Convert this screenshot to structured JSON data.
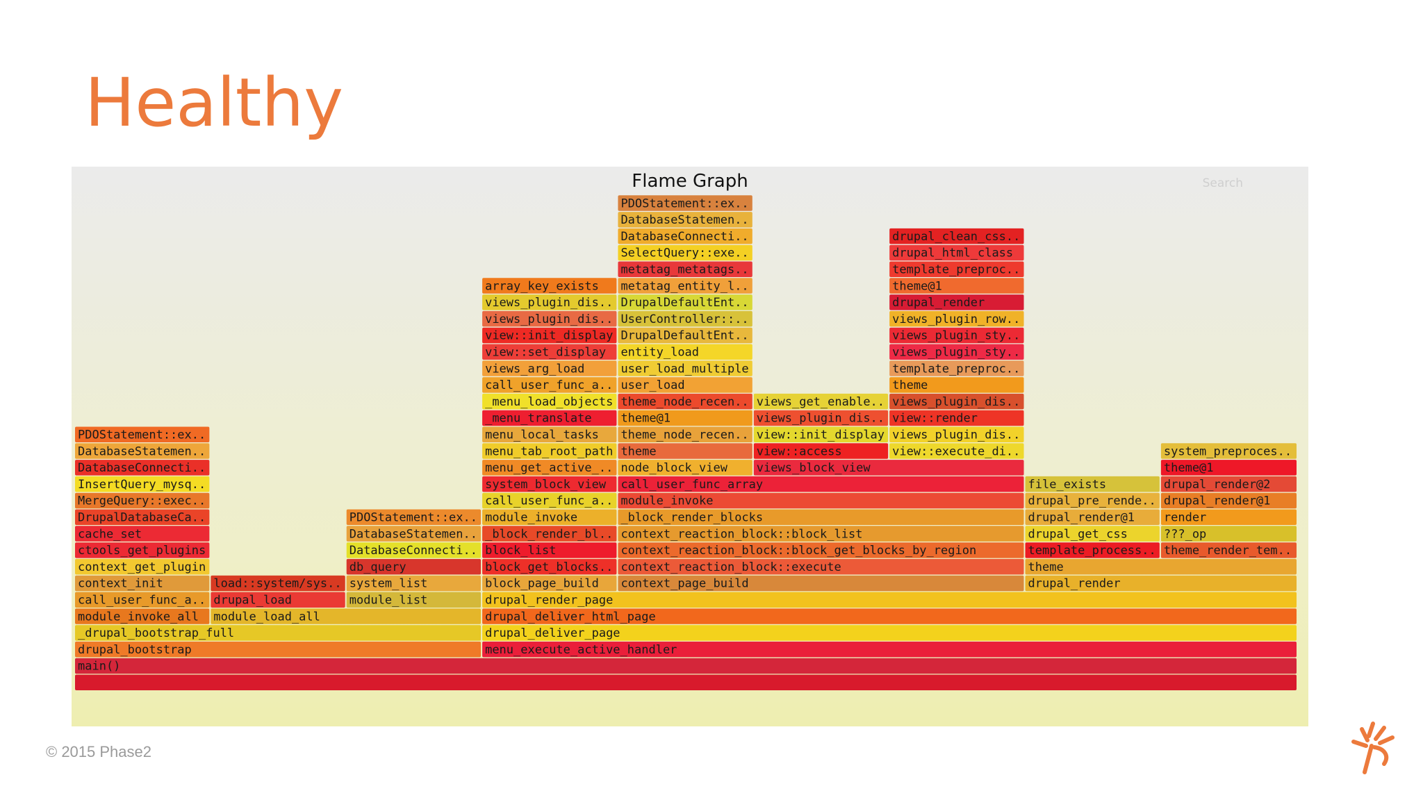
{
  "slide": {
    "title": "Healthy",
    "copyright": "© 2015 Phase2",
    "logo_icon": "phase2-logo-icon",
    "accent_color": "#ec7a3c"
  },
  "chart_data": {
    "type": "flame",
    "title": "Flame Graph",
    "search_label": "Search",
    "x_range": [
      0,
      1000
    ],
    "depth_range": [
      0,
      29
    ],
    "frames": [
      {
        "label": "",
        "start": 0,
        "width": 1000,
        "depth": 0,
        "color": "#d81a2c"
      },
      {
        "label": "main()",
        "start": 0,
        "width": 1000,
        "depth": 1,
        "color": "#d4263a"
      },
      {
        "label": "drupal_bootstrap",
        "start": 0,
        "width": 333,
        "depth": 2,
        "color": "#ef7a28"
      },
      {
        "label": "menu_execute_active_handler",
        "start": 333,
        "width": 667,
        "depth": 2,
        "color": "#ea1f3a"
      },
      {
        "label": "_drupal_bootstrap_full",
        "start": 0,
        "width": 333,
        "depth": 3,
        "color": "#e6c826"
      },
      {
        "label": "drupal_deliver_page",
        "start": 333,
        "width": 667,
        "depth": 3,
        "color": "#f3d21c"
      },
      {
        "label": "module_invoke_all",
        "start": 0,
        "width": 111,
        "depth": 4,
        "color": "#e8781e"
      },
      {
        "label": "module_load_all",
        "start": 111,
        "width": 222,
        "depth": 4,
        "color": "#e4b62a"
      },
      {
        "label": "drupal_deliver_html_page",
        "start": 333,
        "width": 667,
        "depth": 4,
        "color": "#f2681c"
      },
      {
        "label": "call_user_func_a..",
        "start": 0,
        "width": 111,
        "depth": 5,
        "color": "#e89a2a"
      },
      {
        "label": "drupal_load",
        "start": 111,
        "width": 111,
        "depth": 5,
        "color": "#ea3a34"
      },
      {
        "label": "module_list",
        "start": 222,
        "width": 111,
        "depth": 5,
        "color": "#d4b83a"
      },
      {
        "label": "drupal_render_page",
        "start": 333,
        "width": 667,
        "depth": 5,
        "color": "#f2c21e"
      },
      {
        "label": "context_init",
        "start": 0,
        "width": 111,
        "depth": 6,
        "color": "#e09a3a"
      },
      {
        "label": "load::system/sys..",
        "start": 111,
        "width": 111,
        "depth": 6,
        "color": "#d83a22"
      },
      {
        "label": "system_list",
        "start": 222,
        "width": 111,
        "depth": 6,
        "color": "#e8a83c"
      },
      {
        "label": "block_page_build",
        "start": 333,
        "width": 111,
        "depth": 6,
        "color": "#e8a63a"
      },
      {
        "label": "context_page_build",
        "start": 444,
        "width": 333,
        "depth": 6,
        "color": "#d8883a"
      },
      {
        "label": "drupal_render",
        "start": 777,
        "width": 223,
        "depth": 6,
        "color": "#e8b12a"
      },
      {
        "label": "context_get_plugin",
        "start": 0,
        "width": 111,
        "depth": 7,
        "color": "#f2c830"
      },
      {
        "label": "db_query",
        "start": 222,
        "width": 111,
        "depth": 7,
        "color": "#d8362c"
      },
      {
        "label": "block_get_blocks..",
        "start": 333,
        "width": 111,
        "depth": 7,
        "color": "#ee3028"
      },
      {
        "label": "context_reaction_block::execute",
        "start": 444,
        "width": 333,
        "depth": 7,
        "color": "#ec5a38"
      },
      {
        "label": "theme",
        "start": 777,
        "width": 223,
        "depth": 7,
        "color": "#e8a630"
      },
      {
        "label": "ctools_get_plugins",
        "start": 0,
        "width": 111,
        "depth": 8,
        "color": "#ec2a34"
      },
      {
        "label": "DatabaseConnecti..",
        "start": 222,
        "width": 111,
        "depth": 8,
        "color": "#e4e02a"
      },
      {
        "label": "block_list",
        "start": 333,
        "width": 111,
        "depth": 8,
        "color": "#ee1c2c"
      },
      {
        "label": "context_reaction_block::block_get_blocks_by_region",
        "start": 444,
        "width": 333,
        "depth": 8,
        "color": "#ec6a2c"
      },
      {
        "label": "template_process..",
        "start": 777,
        "width": 111,
        "depth": 8,
        "color": "#ec1c24"
      },
      {
        "label": "theme_render_tem..",
        "start": 888,
        "width": 112,
        "depth": 8,
        "color": "#e85a2c"
      },
      {
        "label": "cache_set",
        "start": 0,
        "width": 111,
        "depth": 9,
        "color": "#ec2a34"
      },
      {
        "label": "DatabaseStatemen..",
        "start": 222,
        "width": 111,
        "depth": 9,
        "color": "#e8a23c"
      },
      {
        "label": "_block_render_bl..",
        "start": 333,
        "width": 111,
        "depth": 9,
        "color": "#e84a28"
      },
      {
        "label": "context_reaction_block::block_list",
        "start": 444,
        "width": 333,
        "depth": 9,
        "color": "#e69a2e"
      },
      {
        "label": "drupal_get_css",
        "start": 777,
        "width": 111,
        "depth": 9,
        "color": "#ecd42c"
      },
      {
        "label": "???_op",
        "start": 888,
        "width": 112,
        "depth": 9,
        "color": "#d8c02a"
      },
      {
        "label": "DrupalDatabaseCa..",
        "start": 0,
        "width": 111,
        "depth": 10,
        "color": "#ea4428"
      },
      {
        "label": "PDOStatement::ex..",
        "start": 222,
        "width": 111,
        "depth": 10,
        "color": "#ec8a2c"
      },
      {
        "label": "module_invoke",
        "start": 333,
        "width": 111,
        "depth": 10,
        "color": "#ecb02a"
      },
      {
        "label": "_block_render_blocks",
        "start": 444,
        "width": 333,
        "depth": 10,
        "color": "#e89a2a"
      },
      {
        "label": "drupal_render@1",
        "start": 777,
        "width": 111,
        "depth": 10,
        "color": "#e8ac3a"
      },
      {
        "label": "render",
        "start": 888,
        "width": 112,
        "depth": 10,
        "color": "#f29a1c"
      },
      {
        "label": "MergeQuery::exec..",
        "start": 0,
        "width": 111,
        "depth": 11,
        "color": "#e8782a"
      },
      {
        "label": "call_user_func_a..",
        "start": 333,
        "width": 111,
        "depth": 11,
        "color": "#e8d22a"
      },
      {
        "label": "module_invoke",
        "start": 444,
        "width": 333,
        "depth": 11,
        "color": "#ec4a34"
      },
      {
        "label": "drupal_pre_rende..",
        "start": 777,
        "width": 111,
        "depth": 11,
        "color": "#e8b23c"
      },
      {
        "label": "drupal_render@1",
        "start": 888,
        "width": 112,
        "depth": 11,
        "color": "#e87e26"
      },
      {
        "label": "InsertQuery_mysq..",
        "start": 0,
        "width": 111,
        "depth": 12,
        "color": "#f4dc24"
      },
      {
        "label": "system_block_view",
        "start": 333,
        "width": 111,
        "depth": 12,
        "color": "#ee2a30"
      },
      {
        "label": "call_user_func_array",
        "start": 444,
        "width": 333,
        "depth": 12,
        "color": "#ec2238"
      },
      {
        "label": "file_exists",
        "start": 777,
        "width": 111,
        "depth": 12,
        "color": "#d6c23a"
      },
      {
        "label": "drupal_render@2",
        "start": 888,
        "width": 112,
        "depth": 12,
        "color": "#e44a36"
      },
      {
        "label": "DatabaseConnecti..",
        "start": 0,
        "width": 111,
        "depth": 13,
        "color": "#ea3028"
      },
      {
        "label": "menu_get_active_..",
        "start": 333,
        "width": 111,
        "depth": 13,
        "color": "#f08a26"
      },
      {
        "label": "node_block_view",
        "start": 444,
        "width": 111,
        "depth": 13,
        "color": "#f0b02e"
      },
      {
        "label": "views_block_view",
        "start": 555,
        "width": 222,
        "depth": 13,
        "color": "#ea2a3e"
      },
      {
        "label": "theme@1",
        "start": 888,
        "width": 112,
        "depth": 13,
        "color": "#ee1828"
      },
      {
        "label": "DatabaseStatemen..",
        "start": 0,
        "width": 111,
        "depth": 14,
        "color": "#eea63a"
      },
      {
        "label": "menu_tab_root_path",
        "start": 333,
        "width": 111,
        "depth": 14,
        "color": "#f0cc2a"
      },
      {
        "label": "theme",
        "start": 444,
        "width": 111,
        "depth": 14,
        "color": "#e86a3c"
      },
      {
        "label": "view::access",
        "start": 555,
        "width": 111,
        "depth": 14,
        "color": "#ee2222"
      },
      {
        "label": "view::execute_di..",
        "start": 666,
        "width": 111,
        "depth": 14,
        "color": "#eed82c"
      },
      {
        "label": "system_preproces..",
        "start": 888,
        "width": 112,
        "depth": 14,
        "color": "#e4be3a"
      },
      {
        "label": "PDOStatement::ex..",
        "start": 0,
        "width": 111,
        "depth": 15,
        "color": "#f06a24"
      },
      {
        "label": "menu_local_tasks",
        "start": 333,
        "width": 111,
        "depth": 15,
        "color": "#e8a83c"
      },
      {
        "label": "theme_node_recen..",
        "start": 444,
        "width": 111,
        "depth": 15,
        "color": "#e8a23a"
      },
      {
        "label": "view::init_display",
        "start": 555,
        "width": 111,
        "depth": 15,
        "color": "#e4d82e"
      },
      {
        "label": "views_plugin_dis..",
        "start": 666,
        "width": 111,
        "depth": 15,
        "color": "#f2d22a"
      },
      {
        "label": "_menu_translate",
        "start": 333,
        "width": 111,
        "depth": 16,
        "color": "#ee1f30"
      },
      {
        "label": "theme@1",
        "start": 444,
        "width": 111,
        "depth": 16,
        "color": "#f09a1c"
      },
      {
        "label": "views_plugin_dis..",
        "start": 555,
        "width": 111,
        "depth": 16,
        "color": "#ee5030"
      },
      {
        "label": "view::render",
        "start": 666,
        "width": 111,
        "depth": 16,
        "color": "#ee3426"
      },
      {
        "label": "_menu_load_objects",
        "start": 333,
        "width": 111,
        "depth": 17,
        "color": "#f0e02a"
      },
      {
        "label": "theme_node_recen..",
        "start": 444,
        "width": 111,
        "depth": 17,
        "color": "#ec4a2c"
      },
      {
        "label": "views_get_enable..",
        "start": 555,
        "width": 111,
        "depth": 17,
        "color": "#e6d236"
      },
      {
        "label": "views_plugin_dis..",
        "start": 666,
        "width": 111,
        "depth": 17,
        "color": "#d8502c"
      },
      {
        "label": "call_user_func_a..",
        "start": 333,
        "width": 111,
        "depth": 18,
        "color": "#f0a22a"
      },
      {
        "label": "user_load",
        "start": 444,
        "width": 111,
        "depth": 18,
        "color": "#f2a234"
      },
      {
        "label": "theme",
        "start": 666,
        "width": 111,
        "depth": 18,
        "color": "#f29a1c"
      },
      {
        "label": "views_arg_load",
        "start": 333,
        "width": 111,
        "depth": 19,
        "color": "#f2a03a"
      },
      {
        "label": "user_load_multiple",
        "start": 444,
        "width": 111,
        "depth": 19,
        "color": "#f0cc34"
      },
      {
        "label": "template_preproc..",
        "start": 666,
        "width": 111,
        "depth": 19,
        "color": "#e89a5a"
      },
      {
        "label": "view::set_display",
        "start": 333,
        "width": 111,
        "depth": 20,
        "color": "#ee3e38"
      },
      {
        "label": "entity_load",
        "start": 444,
        "width": 111,
        "depth": 20,
        "color": "#f4d628"
      },
      {
        "label": "views_plugin_sty..",
        "start": 666,
        "width": 111,
        "depth": 20,
        "color": "#ee2a46"
      },
      {
        "label": "view::init_display",
        "start": 333,
        "width": 111,
        "depth": 21,
        "color": "#ee2a24"
      },
      {
        "label": "DrupalDefaultEnt..",
        "start": 444,
        "width": 111,
        "depth": 21,
        "color": "#e8b83c"
      },
      {
        "label": "views_plugin_sty..",
        "start": 666,
        "width": 111,
        "depth": 21,
        "color": "#ec2a34"
      },
      {
        "label": "views_plugin_dis..",
        "start": 333,
        "width": 111,
        "depth": 22,
        "color": "#e86a44"
      },
      {
        "label": "UserController::..",
        "start": 444,
        "width": 111,
        "depth": 22,
        "color": "#d8c23a"
      },
      {
        "label": "views_plugin_row..",
        "start": 666,
        "width": 111,
        "depth": 22,
        "color": "#f0b228"
      },
      {
        "label": "views_plugin_dis..",
        "start": 333,
        "width": 111,
        "depth": 23,
        "color": "#e4ca2e"
      },
      {
        "label": "DrupalDefaultEnt..",
        "start": 444,
        "width": 111,
        "depth": 23,
        "color": "#d8d836"
      },
      {
        "label": "drupal_render",
        "start": 666,
        "width": 111,
        "depth": 23,
        "color": "#d81c34"
      },
      {
        "label": "array_key_exists",
        "start": 333,
        "width": 111,
        "depth": 24,
        "color": "#f07a1c"
      },
      {
        "label": "metatag_entity_l..",
        "start": 444,
        "width": 111,
        "depth": 24,
        "color": "#f0a03a"
      },
      {
        "label": "theme@1",
        "start": 666,
        "width": 111,
        "depth": 24,
        "color": "#f06a2e"
      },
      {
        "label": "metatag_metatags..",
        "start": 444,
        "width": 111,
        "depth": 25,
        "color": "#e8383a"
      },
      {
        "label": "template_preproc..",
        "start": 666,
        "width": 111,
        "depth": 25,
        "color": "#ee3a2e"
      },
      {
        "label": "SelectQuery::exe..",
        "start": 444,
        "width": 111,
        "depth": 26,
        "color": "#f4d024"
      },
      {
        "label": "drupal_html_class",
        "start": 666,
        "width": 111,
        "depth": 26,
        "color": "#ee3a3a"
      },
      {
        "label": "DatabaseConnecti..",
        "start": 444,
        "width": 111,
        "depth": 27,
        "color": "#f0ac2c"
      },
      {
        "label": "drupal_clean_css..",
        "start": 666,
        "width": 111,
        "depth": 27,
        "color": "#e32222"
      },
      {
        "label": "DatabaseStatemen..",
        "start": 444,
        "width": 111,
        "depth": 28,
        "color": "#e8b23c"
      },
      {
        "label": "PDOStatement::ex..",
        "start": 444,
        "width": 111,
        "depth": 29,
        "color": "#d8823e"
      }
    ]
  }
}
